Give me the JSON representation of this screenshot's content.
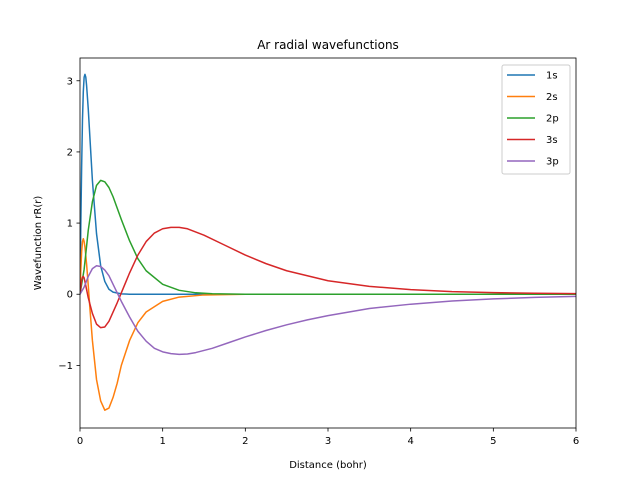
{
  "chart_data": {
    "type": "line",
    "title": "Ar radial wavefunctions",
    "xlabel": "Distance (bohr)",
    "ylabel": "Wavefunction rR(r)",
    "xlim": [
      0,
      6
    ],
    "ylim": [
      -1.88,
      3.32
    ],
    "xticks": [
      0,
      1,
      2,
      3,
      4,
      5,
      6
    ],
    "xtick_labels": [
      "0",
      "1",
      "2",
      "3",
      "4",
      "5",
      "6"
    ],
    "yticks": [
      -1,
      0,
      1,
      2,
      3
    ],
    "ytick_labels": [
      "−1",
      "0",
      "1",
      "2",
      "3"
    ],
    "grid": false,
    "legend_position": "top-right",
    "series": [
      {
        "name": "1s",
        "color": "#1f77b4",
        "points": [
          [
            0,
            0
          ],
          [
            0.01,
            1.0
          ],
          [
            0.02,
            1.8
          ],
          [
            0.03,
            2.45
          ],
          [
            0.04,
            2.85
          ],
          [
            0.05,
            3.05
          ],
          [
            0.06,
            3.09
          ],
          [
            0.07,
            3.05
          ],
          [
            0.08,
            2.93
          ],
          [
            0.1,
            2.6
          ],
          [
            0.12,
            2.2
          ],
          [
            0.15,
            1.6
          ],
          [
            0.2,
            0.85
          ],
          [
            0.25,
            0.4
          ],
          [
            0.3,
            0.18
          ],
          [
            0.35,
            0.07
          ],
          [
            0.4,
            0.03
          ],
          [
            0.5,
            0.005
          ],
          [
            0.6,
            0.0
          ],
          [
            6,
            0.0
          ]
        ]
      },
      {
        "name": "2s",
        "color": "#ff7f0e",
        "points": [
          [
            0,
            0
          ],
          [
            0.01,
            0.35
          ],
          [
            0.02,
            0.6
          ],
          [
            0.03,
            0.74
          ],
          [
            0.04,
            0.78
          ],
          [
            0.05,
            0.74
          ],
          [
            0.06,
            0.66
          ],
          [
            0.08,
            0.42
          ],
          [
            0.1,
            0.12
          ],
          [
            0.12,
            -0.2
          ],
          [
            0.15,
            -0.65
          ],
          [
            0.2,
            -1.2
          ],
          [
            0.25,
            -1.5
          ],
          [
            0.3,
            -1.63
          ],
          [
            0.35,
            -1.6
          ],
          [
            0.4,
            -1.45
          ],
          [
            0.45,
            -1.25
          ],
          [
            0.5,
            -1.0
          ],
          [
            0.6,
            -0.65
          ],
          [
            0.7,
            -0.4
          ],
          [
            0.8,
            -0.25
          ],
          [
            1.0,
            -0.1
          ],
          [
            1.2,
            -0.04
          ],
          [
            1.5,
            -0.01
          ],
          [
            2.0,
            0.0
          ],
          [
            6,
            0.0
          ]
        ]
      },
      {
        "name": "2p",
        "color": "#2ca02c",
        "points": [
          [
            0,
            0
          ],
          [
            0.05,
            0.35
          ],
          [
            0.1,
            0.9
          ],
          [
            0.15,
            1.3
          ],
          [
            0.2,
            1.53
          ],
          [
            0.25,
            1.6
          ],
          [
            0.3,
            1.58
          ],
          [
            0.35,
            1.5
          ],
          [
            0.4,
            1.37
          ],
          [
            0.5,
            1.05
          ],
          [
            0.6,
            0.75
          ],
          [
            0.7,
            0.5
          ],
          [
            0.8,
            0.33
          ],
          [
            1.0,
            0.14
          ],
          [
            1.2,
            0.055
          ],
          [
            1.4,
            0.02
          ],
          [
            1.6,
            0.007
          ],
          [
            2.0,
            0.0
          ],
          [
            6,
            0.0
          ]
        ]
      },
      {
        "name": "3s",
        "color": "#d62728",
        "points": [
          [
            0,
            0
          ],
          [
            0.01,
            0.1
          ],
          [
            0.02,
            0.2
          ],
          [
            0.03,
            0.24
          ],
          [
            0.04,
            0.25
          ],
          [
            0.05,
            0.23
          ],
          [
            0.07,
            0.12
          ],
          [
            0.1,
            -0.05
          ],
          [
            0.15,
            -0.27
          ],
          [
            0.2,
            -0.42
          ],
          [
            0.25,
            -0.47
          ],
          [
            0.3,
            -0.46
          ],
          [
            0.35,
            -0.38
          ],
          [
            0.4,
            -0.25
          ],
          [
            0.45,
            -0.12
          ],
          [
            0.5,
            0.02
          ],
          [
            0.6,
            0.3
          ],
          [
            0.7,
            0.55
          ],
          [
            0.8,
            0.74
          ],
          [
            0.9,
            0.86
          ],
          [
            1.0,
            0.92
          ],
          [
            1.1,
            0.94
          ],
          [
            1.2,
            0.94
          ],
          [
            1.3,
            0.92
          ],
          [
            1.5,
            0.83
          ],
          [
            1.75,
            0.69
          ],
          [
            2.0,
            0.55
          ],
          [
            2.25,
            0.43
          ],
          [
            2.5,
            0.33
          ],
          [
            3.0,
            0.19
          ],
          [
            3.5,
            0.11
          ],
          [
            4.0,
            0.065
          ],
          [
            4.5,
            0.037
          ],
          [
            5.0,
            0.022
          ],
          [
            5.5,
            0.013
          ],
          [
            6.0,
            0.008
          ]
        ]
      },
      {
        "name": "3p",
        "color": "#9467bd",
        "points": [
          [
            0,
            0
          ],
          [
            0.05,
            0.1
          ],
          [
            0.1,
            0.25
          ],
          [
            0.15,
            0.36
          ],
          [
            0.2,
            0.4
          ],
          [
            0.25,
            0.39
          ],
          [
            0.3,
            0.34
          ],
          [
            0.35,
            0.26
          ],
          [
            0.4,
            0.14
          ],
          [
            0.45,
            0.02
          ],
          [
            0.5,
            -0.1
          ],
          [
            0.6,
            -0.32
          ],
          [
            0.7,
            -0.52
          ],
          [
            0.8,
            -0.66
          ],
          [
            0.9,
            -0.76
          ],
          [
            1.0,
            -0.81
          ],
          [
            1.1,
            -0.835
          ],
          [
            1.2,
            -0.845
          ],
          [
            1.3,
            -0.84
          ],
          [
            1.4,
            -0.82
          ],
          [
            1.6,
            -0.76
          ],
          [
            1.8,
            -0.68
          ],
          [
            2.0,
            -0.6
          ],
          [
            2.25,
            -0.51
          ],
          [
            2.5,
            -0.43
          ],
          [
            2.75,
            -0.36
          ],
          [
            3.0,
            -0.3
          ],
          [
            3.5,
            -0.2
          ],
          [
            4.0,
            -0.14
          ],
          [
            4.5,
            -0.095
          ],
          [
            5.0,
            -0.065
          ],
          [
            5.5,
            -0.045
          ],
          [
            6.0,
            -0.03
          ]
        ]
      }
    ]
  }
}
